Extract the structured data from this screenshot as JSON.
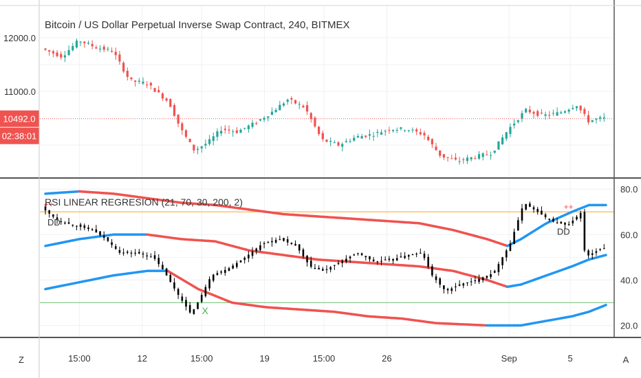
{
  "colors": {
    "up": "#26a69a",
    "down": "#ef5350",
    "rsi_line": "#000000",
    "band_red": "#ef5350",
    "band_blue": "#2196f3",
    "overbought": "#ffb74d",
    "oversold": "#81c784",
    "price_line": "#ef5350",
    "signal_x": "#4caf50",
    "signal_plus": "#ef5350"
  },
  "chart_data": [
    {
      "type": "candlestick",
      "title": "Bitcoin / US Dollar Perpetual Inverse Swap Contract, 240, BITMEX",
      "ylim": [
        9400,
        12600
      ],
      "y_ticks": [
        {
          "value": 12000,
          "label": "12000.0"
        },
        {
          "value": 11000,
          "label": "11000.0"
        }
      ],
      "last_price": {
        "value": 10492,
        "label": "10492.0",
        "countdown": "02:38:01"
      },
      "approx_path": [
        [
          0,
          11800
        ],
        [
          12,
          11650
        ],
        [
          22,
          11950
        ],
        [
          32,
          11820
        ],
        [
          42,
          11750
        ],
        [
          52,
          11200
        ],
        [
          62,
          11150
        ],
        [
          75,
          10800
        ],
        [
          82,
          10300
        ],
        [
          90,
          9900
        ],
        [
          98,
          10050
        ],
        [
          106,
          10300
        ],
        [
          115,
          10250
        ],
        [
          125,
          10400
        ],
        [
          135,
          10600
        ],
        [
          145,
          10850
        ],
        [
          155,
          10700
        ],
        [
          165,
          10100
        ],
        [
          175,
          10000
        ],
        [
          185,
          10150
        ],
        [
          195,
          10200
        ],
        [
          205,
          10300
        ],
        [
          215,
          10300
        ],
        [
          225,
          10200
        ],
        [
          235,
          9800
        ],
        [
          245,
          9700
        ],
        [
          255,
          9780
        ],
        [
          265,
          9850
        ],
        [
          275,
          10300
        ],
        [
          285,
          10650
        ],
        [
          295,
          10550
        ],
        [
          305,
          10600
        ],
        [
          315,
          10750
        ],
        [
          322,
          10450
        ],
        [
          330,
          10500
        ]
      ]
    },
    {
      "type": "line",
      "title": "RSI LINEAR REGRESION (21, 70, 30, 200, 2)",
      "ylim": [
        15,
        84
      ],
      "y_ticks": [
        {
          "value": 80,
          "label": "80.0"
        },
        {
          "value": 60,
          "label": "60.0"
        },
        {
          "value": 40,
          "label": "40.0"
        },
        {
          "value": 20,
          "label": "20.0"
        }
      ],
      "levels": {
        "overbought": 70,
        "oversold": 30
      },
      "approx_rsi": [
        [
          0,
          72
        ],
        [
          10,
          66
        ],
        [
          20,
          64
        ],
        [
          30,
          62
        ],
        [
          38,
          58
        ],
        [
          46,
          52
        ],
        [
          56,
          52
        ],
        [
          66,
          50
        ],
        [
          72,
          44
        ],
        [
          80,
          34
        ],
        [
          88,
          25
        ],
        [
          92,
          30
        ],
        [
          100,
          42
        ],
        [
          110,
          45
        ],
        [
          120,
          50
        ],
        [
          130,
          56
        ],
        [
          140,
          58
        ],
        [
          150,
          55
        ],
        [
          158,
          46
        ],
        [
          166,
          44
        ],
        [
          176,
          48
        ],
        [
          186,
          52
        ],
        [
          196,
          48
        ],
        [
          206,
          49
        ],
        [
          216,
          51
        ],
        [
          224,
          52
        ],
        [
          230,
          42
        ],
        [
          238,
          35
        ],
        [
          246,
          38
        ],
        [
          256,
          40
        ],
        [
          266,
          43
        ],
        [
          276,
          56
        ],
        [
          284,
          74
        ],
        [
          292,
          70
        ],
        [
          300,
          66
        ],
        [
          310,
          64
        ],
        [
          318,
          70
        ],
        [
          320,
          50
        ],
        [
          330,
          54
        ]
      ],
      "upper_band": [
        [
          0,
          78
        ],
        [
          20,
          79
        ],
        [
          40,
          78
        ],
        [
          60,
          76
        ],
        [
          80,
          74
        ],
        [
          100,
          73
        ],
        [
          120,
          71
        ],
        [
          140,
          69
        ],
        [
          160,
          68
        ],
        [
          180,
          67
        ],
        [
          200,
          66
        ],
        [
          220,
          65
        ],
        [
          240,
          62
        ],
        [
          260,
          58
        ],
        [
          272,
          55
        ],
        [
          280,
          58
        ],
        [
          295,
          65
        ],
        [
          310,
          70
        ],
        [
          320,
          73
        ],
        [
          330,
          73
        ]
      ],
      "middle_band": [
        [
          0,
          55
        ],
        [
          20,
          58
        ],
        [
          40,
          60
        ],
        [
          60,
          60
        ],
        [
          80,
          58
        ],
        [
          100,
          57
        ],
        [
          120,
          53
        ],
        [
          140,
          51
        ],
        [
          160,
          49
        ],
        [
          180,
          48
        ],
        [
          200,
          47
        ],
        [
          220,
          46
        ],
        [
          240,
          44
        ],
        [
          260,
          40
        ],
        [
          272,
          37
        ],
        [
          280,
          38
        ],
        [
          295,
          42
        ],
        [
          310,
          46
        ],
        [
          320,
          49
        ],
        [
          330,
          51
        ]
      ],
      "lower_band": [
        [
          0,
          36
        ],
        [
          20,
          39
        ],
        [
          40,
          42
        ],
        [
          60,
          44
        ],
        [
          72,
          44
        ],
        [
          90,
          36
        ],
        [
          110,
          30
        ],
        [
          130,
          28
        ],
        [
          150,
          27
        ],
        [
          170,
          26
        ],
        [
          190,
          24
        ],
        [
          210,
          23
        ],
        [
          230,
          21
        ],
        [
          260,
          20
        ],
        [
          280,
          20
        ],
        [
          295,
          22
        ],
        [
          310,
          24
        ],
        [
          320,
          26
        ],
        [
          330,
          29
        ]
      ],
      "markers": [
        {
          "text": "DD",
          "at": [
            5,
            64
          ]
        },
        {
          "text": "DD",
          "at": [
            305,
            60
          ]
        },
        {
          "text": "++",
          "at": [
            2,
            72
          ]
        },
        {
          "text": "++",
          "at": [
            308,
            71
          ]
        },
        {
          "text": "X",
          "at": [
            94,
            25
          ]
        }
      ]
    }
  ],
  "x_axis": {
    "ticks": [
      {
        "label": "15:00",
        "pos": 20
      },
      {
        "label": "12",
        "pos": 57
      },
      {
        "label": "15:00",
        "pos": 92
      },
      {
        "label": "19",
        "pos": 129
      },
      {
        "label": "15:00",
        "pos": 164
      },
      {
        "label": "26",
        "pos": 201
      },
      {
        "label": "Sep",
        "pos": 273
      },
      {
        "label": "5",
        "pos": 309
      }
    ]
  },
  "toolbar": {
    "left_button": "Z",
    "right_button": "A"
  }
}
